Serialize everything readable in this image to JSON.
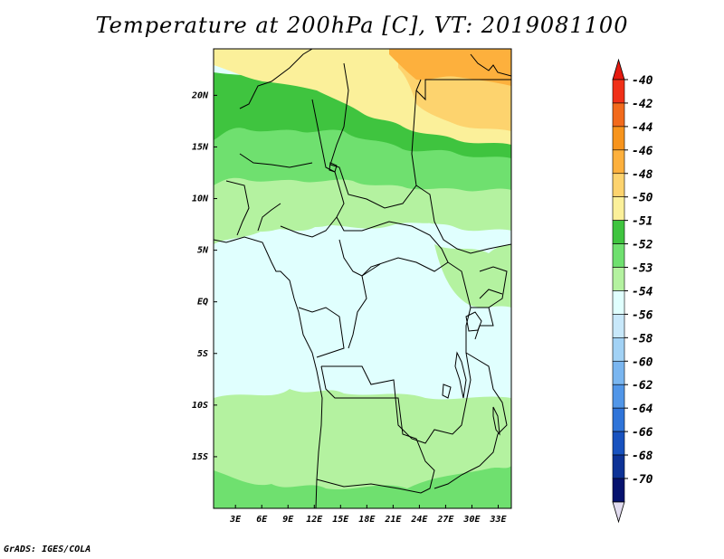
{
  "chart_data": {
    "type": "heatmap",
    "title": "Temperature at 200hPa [C], VT: 2019081100",
    "xlabel": "",
    "ylabel": "",
    "x_ticks": [
      "3E",
      "6E",
      "9E",
      "12E",
      "15E",
      "18E",
      "21E",
      "24E",
      "27E",
      "30E",
      "33E"
    ],
    "y_ticks": [
      "20N",
      "15N",
      "10N",
      "5N",
      "EQ",
      "5S",
      "10S",
      "15S"
    ],
    "lon_range": [
      0.5,
      34.5
    ],
    "lat_range": [
      -20,
      24.5
    ],
    "colorbar": {
      "labels": [
        "-40",
        "-42",
        "-44",
        "-46",
        "-48",
        "-50",
        "-51",
        "-52",
        "-53",
        "-54",
        "-56",
        "-58",
        "-60",
        "-62",
        "-64",
        "-66",
        "-68",
        "-70"
      ],
      "colors": [
        "#f03018",
        "#f26a1c",
        "#f7941d",
        "#fdb03d",
        "#fdd36e",
        "#fbf09a",
        "#3fc43f",
        "#6fe06f",
        "#b4f2a0",
        "#e0fffe",
        "#c8e8fa",
        "#a2d2f5",
        "#7ab6f0",
        "#5196e8",
        "#2f74d9",
        "#1852bf",
        "#0d3296",
        "#06126e"
      ],
      "top_arrow_color": "#e51a10",
      "bottom_arrow_color": "#e2dcf0"
    },
    "fields": {
      "north_band_level": "-48",
      "sahel_band_level": "-51",
      "mid_band_level": "-52",
      "central_africa_level": "-54",
      "south_band_level": "-53"
    }
  },
  "credit": "GrADS: IGES/COLA"
}
